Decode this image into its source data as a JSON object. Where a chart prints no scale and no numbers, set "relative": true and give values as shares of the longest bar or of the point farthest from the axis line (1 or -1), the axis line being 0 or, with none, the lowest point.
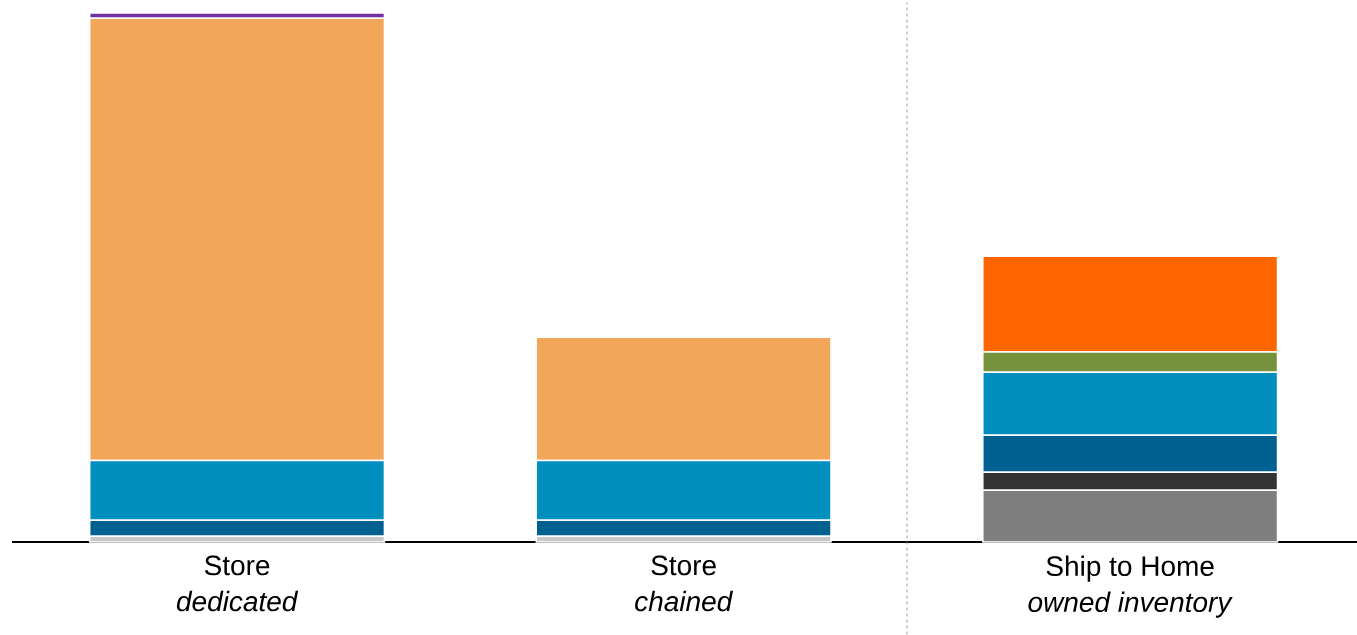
{
  "chart_data": {
    "type": "bar",
    "stacked": true,
    "relative": true,
    "categories": [
      "Store\n*dedicated*",
      "Store\n*chained*",
      "Ship to Home\n*owned inventory*"
    ],
    "series": [
      {
        "color": "#c8c8c8",
        "values": [
          0.011,
          0.011,
          null
        ]
      },
      {
        "color": "#7f7f7f",
        "values": [
          null,
          null,
          0.098
        ]
      },
      {
        "color": "#333333",
        "values": [
          null,
          null,
          0.034
        ]
      },
      {
        "color": "#00608f",
        "values": [
          0.03,
          0.03,
          0.07
        ]
      },
      {
        "color": "#008fbf",
        "values": [
          0.113,
          0.113,
          0.119
        ]
      },
      {
        "color": "#76923c",
        "values": [
          null,
          null,
          0.038
        ]
      },
      {
        "color": "#f2a65a",
        "values": [
          0.836,
          0.233,
          null
        ]
      },
      {
        "color": "#ff6600",
        "values": [
          null,
          null,
          0.181
        ]
      },
      {
        "color": "#7030a0",
        "values": [
          0.01,
          null,
          null
        ]
      }
    ]
  }
}
